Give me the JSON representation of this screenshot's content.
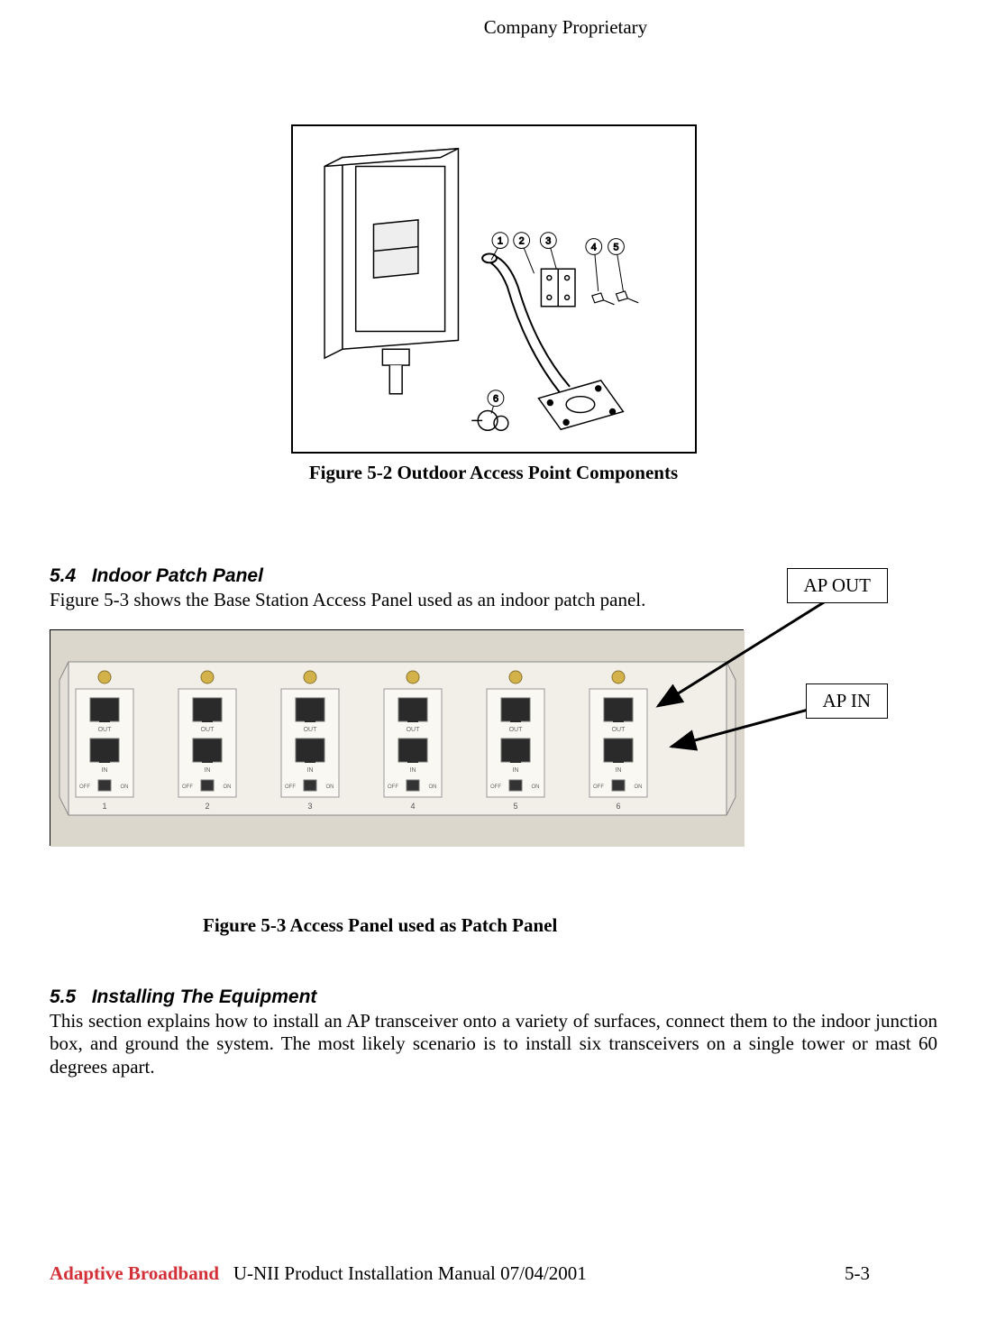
{
  "header": {
    "classification": "Company Proprietary"
  },
  "figure1": {
    "caption": "Figure 5-2  Outdoor Access Point Components",
    "callouts": [
      "1",
      "2",
      "3",
      "4",
      "5",
      "6"
    ]
  },
  "section54": {
    "number": "5.4",
    "title": "Indoor Patch Panel",
    "text": "Figure 5-3 shows the Base Station Access Panel used as an indoor patch panel."
  },
  "patchPanel": {
    "callout_apout": "AP OUT",
    "callout_apin": "AP IN",
    "ports": [
      "1",
      "2",
      "3",
      "4",
      "5",
      "6"
    ],
    "port_labels_top": "OUT",
    "port_labels_bottom": "IN",
    "switch_off": "OFF",
    "switch_on": "ON"
  },
  "figure2": {
    "caption": "Figure 5-3  Access Panel used as Patch Panel"
  },
  "section55": {
    "number": "5.5",
    "title": "Installing The Equipment",
    "text": "This section explains how to install an AP transceiver onto a variety of surfaces, connect them to the indoor junction box, and ground the system.  The most likely scenario is to install six transceivers on a single tower or mast 60 degrees apart."
  },
  "footer": {
    "company": "Adaptive Broadband",
    "title": "U-NII Product Installation Manual  07/04/2001",
    "page": "5-3"
  },
  "colors": {
    "text": "#000000",
    "accent": "#d43038",
    "panel_bg": "#e8e4dc",
    "panel_face": "#f2efe9"
  }
}
